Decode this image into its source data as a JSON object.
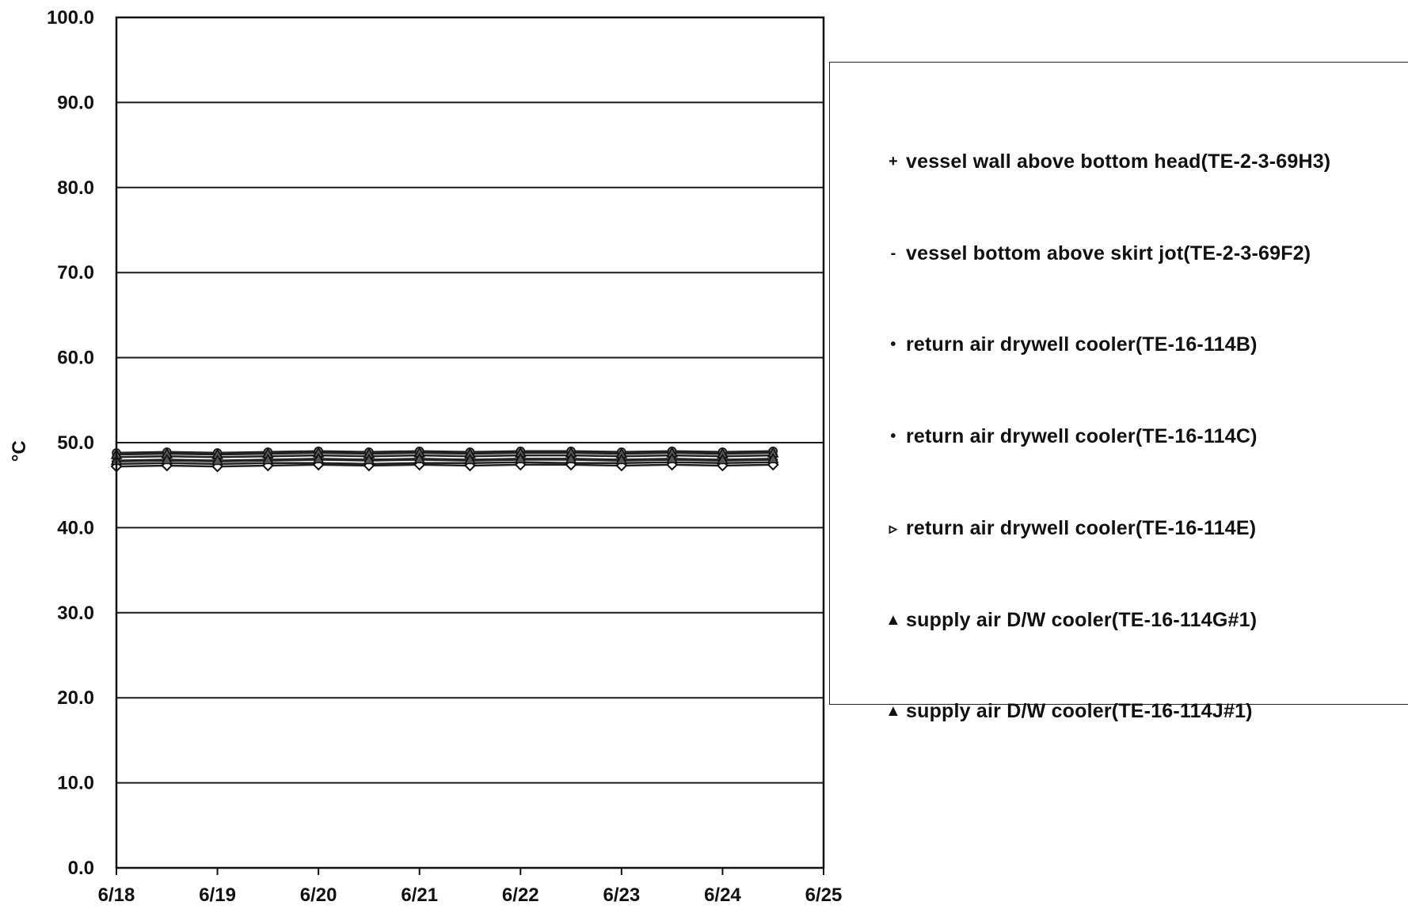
{
  "chart_data": {
    "type": "line",
    "title": "",
    "xlabel": "",
    "ylabel": "°C",
    "ylim": [
      0,
      100
    ],
    "y_ticks": [
      "0.0",
      "10.0",
      "20.0",
      "30.0",
      "40.0",
      "50.0",
      "60.0",
      "70.0",
      "80.0",
      "90.0",
      "100.0"
    ],
    "x_ticks": [
      "6/18",
      "6/19",
      "6/20",
      "6/21",
      "6/22",
      "6/23",
      "6/24",
      "6/25"
    ],
    "xlim": [
      "6/18",
      "6/25"
    ],
    "grid": "horizontal",
    "legend_position": "right",
    "x": [
      "6/18",
      "6/18 12:00",
      "6/19",
      "6/19 12:00",
      "6/20",
      "6/20 12:00",
      "6/21",
      "6/21 12:00",
      "6/22",
      "6/22 12:00",
      "6/23",
      "6/23 12:00",
      "6/24",
      "6/24 12:00"
    ],
    "series": [
      {
        "name": "vessel wall above bottom head(TE-2-3-69H3)",
        "marker": "plus",
        "values": [
          47.8,
          47.9,
          47.8,
          47.9,
          48.0,
          47.9,
          48.0,
          47.9,
          48.0,
          48.0,
          47.9,
          48.0,
          47.9,
          48.0
        ]
      },
      {
        "name": "vessel bottom above skirt jot(TE-2-3-69F2)",
        "marker": "dash",
        "values": [
          47.5,
          47.6,
          47.5,
          47.6,
          47.6,
          47.5,
          47.6,
          47.6,
          47.7,
          47.6,
          47.6,
          47.7,
          47.6,
          47.7
        ]
      },
      {
        "name": "return air drywell cooler(TE-16-114B)",
        "marker": "circle",
        "values": [
          48.3,
          48.4,
          48.3,
          48.4,
          48.5,
          48.4,
          48.5,
          48.4,
          48.5,
          48.5,
          48.4,
          48.5,
          48.4,
          48.5
        ]
      },
      {
        "name": "return air drywell cooler(TE-16-114C)",
        "marker": "circle",
        "values": [
          48.8,
          48.9,
          48.8,
          48.9,
          49.0,
          48.9,
          49.0,
          48.9,
          49.0,
          49.0,
          48.9,
          49.0,
          48.9,
          49.0
        ]
      },
      {
        "name": "return air drywell cooler(TE-16-114E)",
        "marker": "diamond",
        "values": [
          47.2,
          47.3,
          47.2,
          47.3,
          47.4,
          47.3,
          47.4,
          47.3,
          47.4,
          47.4,
          47.3,
          47.4,
          47.3,
          47.4
        ]
      },
      {
        "name": "supply air D/W cooler(TE-16-114G#1)",
        "marker": "triangle",
        "values": [
          48.6,
          48.7,
          48.6,
          48.7,
          48.8,
          48.7,
          48.8,
          48.7,
          48.8,
          48.8,
          48.7,
          48.8,
          48.7,
          48.8
        ]
      },
      {
        "name": "supply air D/W cooler(TE-16-114J#1)",
        "marker": "triangle",
        "values": [
          47.9,
          48.0,
          47.9,
          48.0,
          48.1,
          48.0,
          48.1,
          48.0,
          48.1,
          48.1,
          48.0,
          48.1,
          48.0,
          48.1
        ]
      }
    ]
  },
  "legend": {
    "items": [
      {
        "marker": "+",
        "label": "vessel wall above bottom head(TE-2-3-69H3)"
      },
      {
        "marker": "-",
        "label": "vessel bottom above skirt jot(TE-2-3-69F2)"
      },
      {
        "marker": "•",
        "label": "return air drywell cooler(TE-16-114B)"
      },
      {
        "marker": "•",
        "label": "return air drywell cooler(TE-16-114C)"
      },
      {
        "marker": "▹",
        "label": "return air drywell cooler(TE-16-114E)"
      },
      {
        "marker": "▲",
        "label": "supply air D/W cooler(TE-16-114G#1)"
      },
      {
        "marker": "▲",
        "label": "supply air D/W cooler(TE-16-114J#1)"
      }
    ]
  },
  "colors": {
    "ink": "#111111",
    "grid": "#1a1a1a",
    "background": "#ffffff"
  }
}
